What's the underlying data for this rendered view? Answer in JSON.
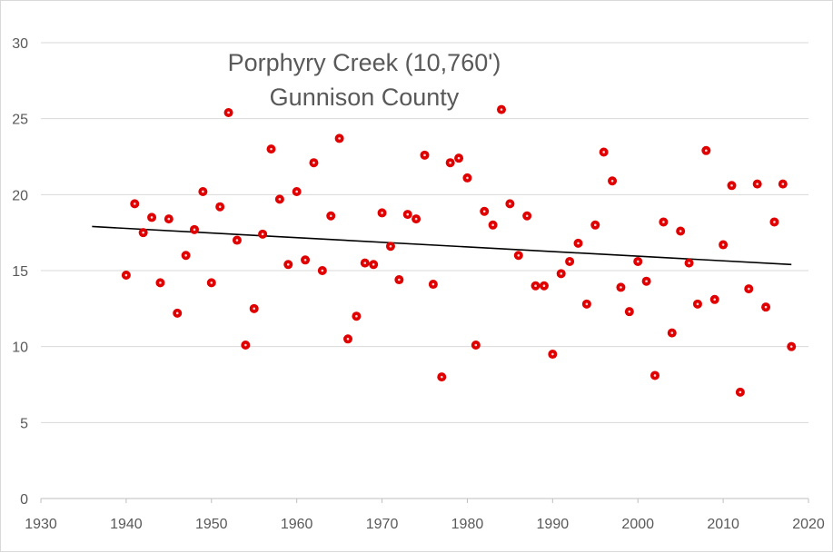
{
  "chart_data": {
    "type": "scatter",
    "title": [
      "Porphyry Creek (10,760')",
      "Gunnison County"
    ],
    "xlabel": "",
    "ylabel": "",
    "xlim": [
      1930,
      2020
    ],
    "ylim": [
      0,
      30
    ],
    "xticks": [
      1930,
      1940,
      1950,
      1960,
      1970,
      1980,
      1990,
      2000,
      2010,
      2020
    ],
    "yticks": [
      0,
      5,
      10,
      15,
      20,
      25,
      30
    ],
    "grid": "horizontal",
    "marker_color": "#e00000",
    "trendline": {
      "type": "linear",
      "x": [
        1936,
        2018
      ],
      "y": [
        17.9,
        15.4
      ],
      "color": "#000000"
    },
    "series": [
      {
        "name": "Porphyry Creek",
        "x": [
          1940,
          1941,
          1942,
          1943,
          1944,
          1945,
          1946,
          1947,
          1948,
          1949,
          1950,
          1951,
          1952,
          1953,
          1954,
          1955,
          1956,
          1957,
          1958,
          1959,
          1960,
          1961,
          1962,
          1963,
          1964,
          1965,
          1966,
          1967,
          1968,
          1969,
          1970,
          1971,
          1972,
          1973,
          1974,
          1975,
          1976,
          1977,
          1978,
          1979,
          1980,
          1981,
          1982,
          1983,
          1984,
          1985,
          1986,
          1987,
          1988,
          1989,
          1990,
          1991,
          1992,
          1993,
          1994,
          1995,
          1996,
          1997,
          1998,
          1999,
          2000,
          2001,
          2002,
          2003,
          2004,
          2005,
          2006,
          2007,
          2008,
          2009,
          2010,
          2011,
          2012,
          2013,
          2014,
          2015,
          2016,
          2017,
          2018
        ],
        "y": [
          14.7,
          19.4,
          17.5,
          18.5,
          14.2,
          18.4,
          12.2,
          16.0,
          17.7,
          20.2,
          14.2,
          19.2,
          25.4,
          17.0,
          10.1,
          12.5,
          17.4,
          23.0,
          19.7,
          15.4,
          20.2,
          15.7,
          22.1,
          15.0,
          18.6,
          23.7,
          10.5,
          12.0,
          15.5,
          15.4,
          18.8,
          16.6,
          14.4,
          18.7,
          18.4,
          22.6,
          14.1,
          8.0,
          22.1,
          22.4,
          21.1,
          10.1,
          18.9,
          18.0,
          25.6,
          19.4,
          16.0,
          18.6,
          14.0,
          14.0,
          9.5,
          14.8,
          15.6,
          16.8,
          12.8,
          18.0,
          22.8,
          20.9,
          13.9,
          12.3,
          15.6,
          14.3,
          8.1,
          18.2,
          10.9,
          17.6,
          15.5,
          12.8,
          22.9,
          13.1,
          16.7,
          20.6,
          7.0,
          13.8,
          20.7,
          12.6,
          18.2,
          20.7,
          10.0
        ]
      }
    ]
  }
}
